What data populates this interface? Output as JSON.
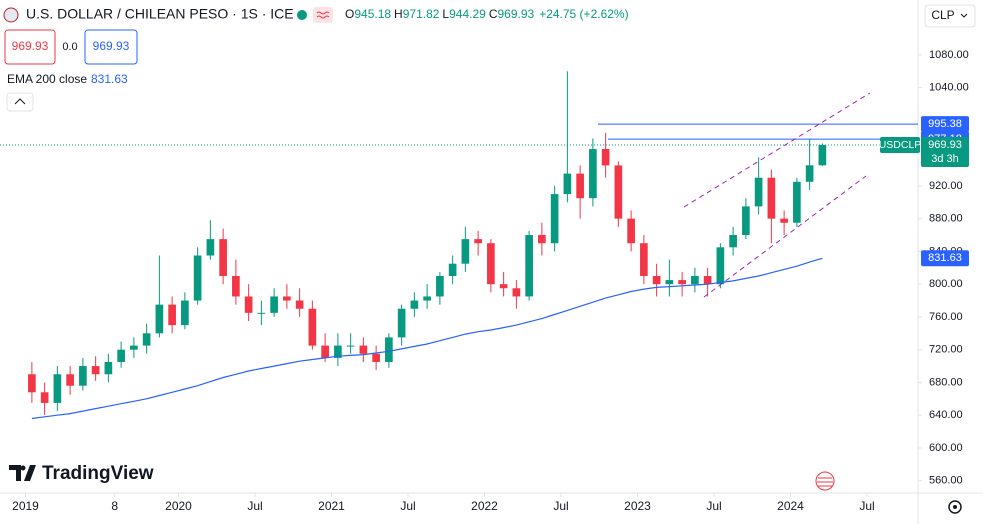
{
  "header": {
    "title": "U.S. DOLLAR / CHILEAN PESO · 1S · ICE",
    "ohlc_labels": [
      "O",
      "H",
      "L",
      "C"
    ],
    "change": "+24.75 (+2.62%)",
    "sell": "969.93",
    "spread": "0.0",
    "buy": "969.93",
    "indicator": "EMA 200 close",
    "currency": "CLP",
    "brand": "TradingView"
  },
  "chart_data": {
    "type": "candlestick",
    "symbol": "USDCLP",
    "countdown": "3d 3h",
    "x": [
      "2019-01",
      "2019-02",
      "2019-03",
      "2019-04",
      "2019-05",
      "2019-06",
      "2019-07",
      "2019-08",
      "2019-09",
      "2019-10",
      "2019-11",
      "2019-12",
      "2020-01",
      "2020-02",
      "2020-03",
      "2020-04",
      "2020-05",
      "2020-06",
      "2020-07",
      "2020-08",
      "2020-09",
      "2020-10",
      "2020-11",
      "2020-12",
      "2021-01",
      "2021-02",
      "2021-03",
      "2021-04",
      "2021-05",
      "2021-06",
      "2021-07",
      "2021-08",
      "2021-09",
      "2021-10",
      "2021-11",
      "2021-12",
      "2022-01",
      "2022-02",
      "2022-03",
      "2022-04",
      "2022-05",
      "2022-06",
      "2022-07",
      "2022-08",
      "2022-09",
      "2022-10",
      "2022-11",
      "2022-12",
      "2023-01",
      "2023-02",
      "2023-03",
      "2023-04",
      "2023-05",
      "2023-06",
      "2023-07",
      "2023-08",
      "2023-09",
      "2023-10",
      "2023-11",
      "2023-12",
      "2024-01",
      "2024-02",
      "2024-03"
    ],
    "open": [
      690,
      668,
      655,
      690,
      676,
      700,
      690,
      705,
      720,
      725,
      740,
      775,
      750,
      780,
      835,
      855,
      810,
      785,
      765,
      765,
      785,
      780,
      770,
      725,
      710,
      725,
      725,
      715,
      705,
      735,
      770,
      780,
      785,
      810,
      825,
      855,
      850,
      800,
      795,
      785,
      860,
      850,
      910,
      935,
      905,
      965,
      945,
      880,
      850,
      810,
      800,
      805,
      800,
      810,
      800,
      845,
      860,
      895,
      930,
      880,
      875,
      925,
      945.18
    ],
    "high": [
      705,
      680,
      700,
      700,
      710,
      712,
      715,
      730,
      735,
      752,
      835,
      785,
      790,
      845,
      878,
      868,
      830,
      800,
      780,
      795,
      800,
      795,
      780,
      740,
      740,
      740,
      735,
      725,
      740,
      775,
      790,
      800,
      815,
      835,
      870,
      865,
      855,
      815,
      805,
      865,
      875,
      920,
      1060,
      945,
      978,
      985,
      950,
      890,
      860,
      825,
      830,
      815,
      820,
      820,
      850,
      870,
      905,
      955,
      940,
      890,
      930,
      977,
      971.82
    ],
    "low": [
      655,
      640,
      645,
      665,
      670,
      682,
      680,
      698,
      710,
      715,
      735,
      740,
      745,
      775,
      830,
      800,
      775,
      755,
      750,
      760,
      770,
      760,
      720,
      705,
      700,
      715,
      705,
      695,
      698,
      725,
      760,
      770,
      775,
      800,
      815,
      835,
      790,
      785,
      770,
      780,
      835,
      840,
      900,
      880,
      895,
      930,
      870,
      840,
      800,
      785,
      785,
      785,
      790,
      785,
      795,
      835,
      855,
      885,
      850,
      860,
      870,
      915,
      944.29
    ],
    "close": [
      668,
      655,
      690,
      676,
      700,
      690,
      705,
      720,
      725,
      740,
      775,
      750,
      780,
      835,
      855,
      810,
      785,
      765,
      765,
      785,
      780,
      770,
      725,
      710,
      725,
      725,
      715,
      705,
      735,
      770,
      780,
      785,
      810,
      825,
      855,
      850,
      800,
      795,
      785,
      860,
      850,
      910,
      935,
      905,
      965,
      945,
      880,
      850,
      810,
      800,
      805,
      800,
      810,
      800,
      845,
      860,
      895,
      930,
      880,
      875,
      925,
      945.18,
      969.93
    ],
    "up_color": "#089981",
    "down_color": "#f23645",
    "series": [
      {
        "name": "EMA 200 close",
        "color": "#2962ff",
        "values": [
          636,
          638,
          640,
          642,
          645,
          648,
          651,
          654,
          657,
          660,
          664,
          668,
          672,
          676,
          681,
          686,
          690,
          694,
          697,
          700,
          703,
          706,
          708,
          710,
          712,
          713,
          714,
          716,
          718,
          721,
          724,
          727,
          731,
          735,
          739,
          742,
          744,
          747,
          750,
          754,
          758,
          763,
          768,
          773,
          778,
          783,
          787,
          791,
          794,
          796,
          797,
          798,
          799,
          800,
          802,
          804,
          807,
          810,
          814,
          818,
          822,
          827,
          831.63
        ]
      }
    ],
    "levels": [
      995.38,
      977.18
    ],
    "level_color": "#2962ff",
    "xlim": [
      "2018-11",
      "2024-11"
    ],
    "xticks": [
      {
        "value": "2019-01",
        "label": "2019"
      },
      {
        "value": "2019-08",
        "label": "8"
      },
      {
        "value": "2020-01",
        "label": "2020"
      },
      {
        "value": "2020-07",
        "label": "Jul"
      },
      {
        "value": "2021-01",
        "label": "2021"
      },
      {
        "value": "2021-07",
        "label": "Jul"
      },
      {
        "value": "2022-01",
        "label": "2022"
      },
      {
        "value": "2022-07",
        "label": "Jul"
      },
      {
        "value": "2023-01",
        "label": "2023"
      },
      {
        "value": "2023-07",
        "label": "Jul"
      },
      {
        "value": "2024-01",
        "label": "2024"
      },
      {
        "value": "2024-07",
        "label": "Jul"
      }
    ],
    "ylim": [
      545,
      1147
    ],
    "yticks": [
      {
        "value": 560,
        "label": "560.00"
      },
      {
        "value": 600,
        "label": "600.00"
      },
      {
        "value": 640,
        "label": "640.00"
      },
      {
        "value": 680,
        "label": "680.00"
      },
      {
        "value": 720,
        "label": "720.00"
      },
      {
        "value": 760,
        "label": "760.00"
      },
      {
        "value": 800,
        "label": "800.00"
      },
      {
        "value": 840,
        "label": "840.00"
      },
      {
        "value": 880,
        "label": "880.00"
      },
      {
        "value": 920,
        "label": "920.00"
      },
      {
        "value": 1040,
        "label": "1040.00"
      },
      {
        "value": 1080,
        "label": "1080.00"
      }
    ],
    "grid": false
  }
}
